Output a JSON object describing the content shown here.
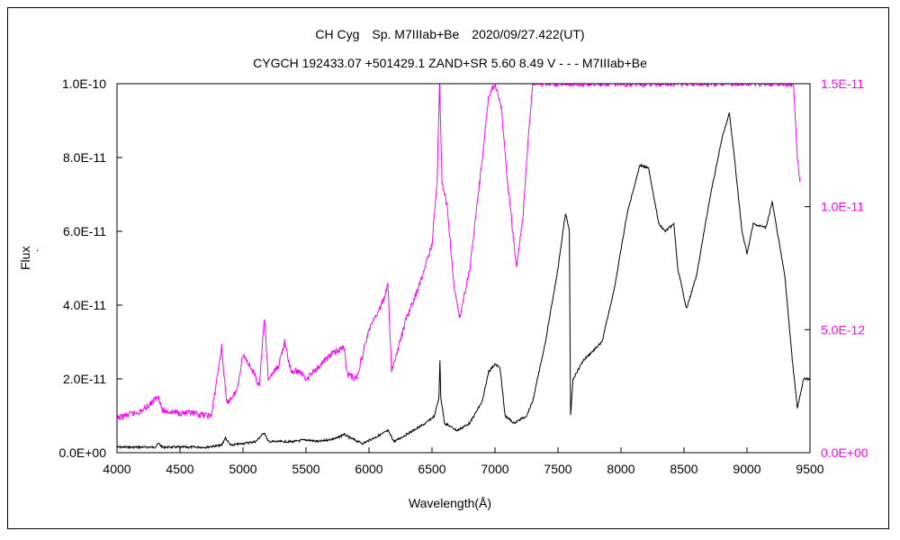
{
  "chart_data": {
    "type": "line",
    "title_line1": "CH Cyg　Sp. M7IIIab+Be　2020/09/27.422(UT)",
    "title_line2": "CYGCH 192433.07 +501429.1 ZAND+SR 5.60 8.49 V - - - M7IIIab+Be",
    "xlabel": "Wavelength(Å)",
    "ylabel_left": "Flux",
    "ylabel_left_mark": ".",
    "xlim": [
      4000,
      9500
    ],
    "ylim_left": [
      0,
      1e-10
    ],
    "ylim_right": [
      0,
      1.5e-11
    ],
    "x_ticks": [
      "4000",
      "4500",
      "5000",
      "5500",
      "6000",
      "6500",
      "7000",
      "7500",
      "8000",
      "8500",
      "9000",
      "9500"
    ],
    "y_ticks_left": [
      "0.0E+00",
      "2.0E-11",
      "4.0E-11",
      "6.0E-11",
      "8.0E-11",
      "1.0E-10"
    ],
    "y_ticks_right": [
      "0.0E+00",
      "5.0E-12",
      "1.0E-11",
      "1.5E-11"
    ],
    "grid": false,
    "colors": {
      "left_series": "#000000",
      "right_series": "#ff00ff",
      "right_axis": "#ff00ff"
    },
    "series": [
      {
        "axis": "left",
        "color": "#000000",
        "points": [
          [
            4000,
            1.5e-12
          ],
          [
            4300,
            1.5e-12
          ],
          [
            4330,
            2.5e-12
          ],
          [
            4360,
            1.5e-12
          ],
          [
            4700,
            1.5e-12
          ],
          [
            4830,
            2e-12
          ],
          [
            4860,
            4e-12
          ],
          [
            4900,
            2e-12
          ],
          [
            5100,
            3e-12
          ],
          [
            5170,
            5.5e-12
          ],
          [
            5200,
            3e-12
          ],
          [
            5400,
            3e-12
          ],
          [
            5500,
            3.5e-12
          ],
          [
            5600,
            3e-12
          ],
          [
            5750,
            4e-12
          ],
          [
            5800,
            5e-12
          ],
          [
            5850,
            4e-12
          ],
          [
            5950,
            2.5e-12
          ],
          [
            6100,
            5e-12
          ],
          [
            6150,
            6e-12
          ],
          [
            6200,
            3e-12
          ],
          [
            6350,
            6e-12
          ],
          [
            6450,
            8e-12
          ],
          [
            6520,
            1e-11
          ],
          [
            6555,
            1.5e-11
          ],
          [
            6563,
            2.5e-11
          ],
          [
            6570,
            1.5e-11
          ],
          [
            6600,
            8e-12
          ],
          [
            6700,
            6e-12
          ],
          [
            6800,
            8e-12
          ],
          [
            6900,
            1.4e-11
          ],
          [
            6950,
            2.2e-11
          ],
          [
            7000,
            2.4e-11
          ],
          [
            7040,
            2.3e-11
          ],
          [
            7080,
            1e-11
          ],
          [
            7150,
            8e-12
          ],
          [
            7250,
            1e-11
          ],
          [
            7300,
            1.4e-11
          ],
          [
            7400,
            3e-11
          ],
          [
            7500,
            5e-11
          ],
          [
            7560,
            6.5e-11
          ],
          [
            7590,
            6e-11
          ],
          [
            7600,
            1e-11
          ],
          [
            7620,
            2e-11
          ],
          [
            7700,
            2.5e-11
          ],
          [
            7850,
            3e-11
          ],
          [
            7950,
            4.5e-11
          ],
          [
            8050,
            6.5e-11
          ],
          [
            8150,
            7.8e-11
          ],
          [
            8220,
            7.7e-11
          ],
          [
            8300,
            6.2e-11
          ],
          [
            8350,
            6e-11
          ],
          [
            8420,
            6.2e-11
          ],
          [
            8450,
            5e-11
          ],
          [
            8520,
            3.9e-11
          ],
          [
            8600,
            4.8e-11
          ],
          [
            8700,
            6.8e-11
          ],
          [
            8800,
            8.5e-11
          ],
          [
            8860,
            9.2e-11
          ],
          [
            8900,
            8e-11
          ],
          [
            8960,
            6e-11
          ],
          [
            9000,
            5.4e-11
          ],
          [
            9050,
            6.2e-11
          ],
          [
            9150,
            6.1e-11
          ],
          [
            9200,
            6.8e-11
          ],
          [
            9230,
            6.2e-11
          ],
          [
            9300,
            4.8e-11
          ],
          [
            9360,
            2.5e-11
          ],
          [
            9400,
            1.2e-11
          ],
          [
            9450,
            2e-11
          ],
          [
            9500,
            2e-11
          ]
        ]
      },
      {
        "axis": "right",
        "color": "#ff00ff",
        "points": [
          [
            4000,
            1.4e-12
          ],
          [
            4200,
            1.7e-12
          ],
          [
            4330,
            2.3e-12
          ],
          [
            4360,
            1.7e-12
          ],
          [
            4750,
            1.5e-12
          ],
          [
            4830,
            4.3e-12
          ],
          [
            4870,
            2e-12
          ],
          [
            4950,
            2.5e-12
          ],
          [
            5000,
            4e-12
          ],
          [
            5060,
            3.5e-12
          ],
          [
            5130,
            2.7e-12
          ],
          [
            5170,
            5.5e-12
          ],
          [
            5200,
            3e-12
          ],
          [
            5280,
            3.5e-12
          ],
          [
            5330,
            4.5e-12
          ],
          [
            5380,
            3.3e-12
          ],
          [
            5450,
            3.3e-12
          ],
          [
            5500,
            3e-12
          ],
          [
            5600,
            3.5e-12
          ],
          [
            5700,
            4e-12
          ],
          [
            5800,
            4.3e-12
          ],
          [
            5830,
            3.2e-12
          ],
          [
            5900,
            3e-12
          ],
          [
            6000,
            5e-12
          ],
          [
            6100,
            6e-12
          ],
          [
            6150,
            6.8e-12
          ],
          [
            6180,
            3.3e-12
          ],
          [
            6300,
            5.5e-12
          ],
          [
            6400,
            6.8e-12
          ],
          [
            6500,
            8.5e-12
          ],
          [
            6540,
            1.1e-11
          ],
          [
            6560,
            1.5e-11
          ],
          [
            6580,
            1.1e-11
          ],
          [
            6620,
            1e-11
          ],
          [
            6680,
            6.5e-12
          ],
          [
            6720,
            5.5e-12
          ],
          [
            6800,
            7.5e-12
          ],
          [
            6900,
            1.2e-11
          ],
          [
            6950,
            1.45e-11
          ],
          [
            7000,
            1.5e-11
          ],
          [
            7050,
            1.4e-11
          ],
          [
            7100,
            1.1e-11
          ],
          [
            7170,
            7.5e-12
          ],
          [
            7220,
            9.5e-12
          ],
          [
            7260,
            1.25e-11
          ],
          [
            7300,
            1.5e-11
          ],
          [
            7590,
            1.5e-11
          ],
          [
            7600,
            1.5e-11
          ],
          [
            7620,
            1.5e-11
          ],
          [
            9370,
            1.5e-11
          ],
          [
            9400,
            1.2e-11
          ],
          [
            9420,
            1.1e-11
          ]
        ]
      }
    ]
  }
}
